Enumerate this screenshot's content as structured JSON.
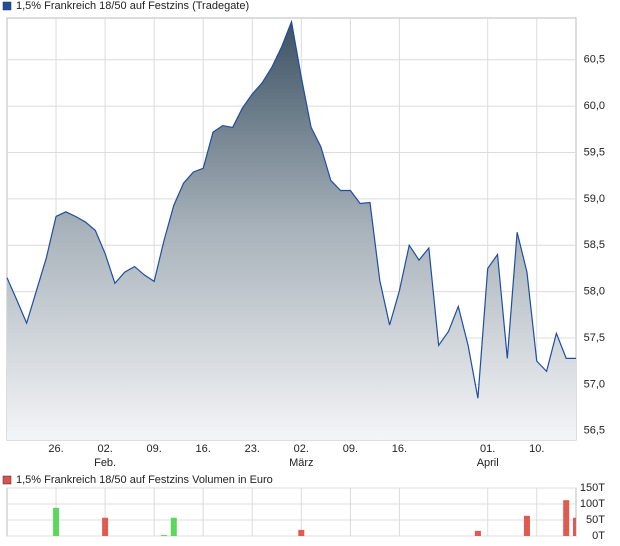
{
  "chart_data": [
    {
      "type": "area",
      "title": "1,5% Frankreich 18/50 auf Festzins (Tradegate)",
      "color": "#1f4ea0",
      "legend_color": "#1f4ea0",
      "x": [
        0,
        1,
        2,
        3,
        4,
        5,
        6,
        7,
        8,
        9,
        10,
        11,
        12,
        13,
        14,
        15,
        16,
        17,
        18,
        19,
        20,
        21,
        22,
        23,
        24,
        25,
        26,
        27,
        28,
        29,
        30,
        31,
        32,
        33,
        34,
        35,
        36,
        37,
        38,
        39,
        40,
        41,
        42,
        43,
        44,
        45,
        46,
        47,
        48,
        49,
        50,
        51,
        52,
        53,
        54,
        55,
        56,
        57,
        58
      ],
      "values": [
        58.15,
        57.91,
        57.66,
        58.01,
        58.36,
        58.81,
        58.86,
        58.81,
        58.75,
        58.66,
        58.41,
        58.09,
        58.21,
        58.27,
        58.18,
        58.11,
        58.55,
        58.93,
        59.17,
        59.29,
        59.33,
        59.72,
        59.79,
        59.77,
        59.98,
        60.13,
        60.25,
        60.42,
        60.64,
        60.91,
        60.31,
        59.77,
        59.56,
        59.2,
        59.09,
        59.09,
        58.95,
        58.96,
        58.12,
        57.64,
        58.01,
        58.5,
        58.34,
        58.47,
        57.42,
        57.57,
        57.84,
        57.42,
        56.85,
        58.25,
        58.4,
        57.28,
        58.64,
        58.21,
        57.25,
        57.14,
        57.55,
        57.28,
        57.28
      ],
      "xlim": [
        0,
        58
      ],
      "xticks": [
        {
          "value": 5,
          "label": "26."
        },
        {
          "value": 10,
          "label": "02."
        },
        {
          "value": 15,
          "label": "09."
        },
        {
          "value": 20,
          "label": "16."
        },
        {
          "value": 25,
          "label": "23."
        },
        {
          "value": 30,
          "label": "02."
        },
        {
          "value": 35,
          "label": "09."
        },
        {
          "value": 40,
          "label": "16."
        },
        {
          "value": 49,
          "label": "01."
        },
        {
          "value": 54,
          "label": "10."
        }
      ],
      "xmonths": [
        {
          "value": 10,
          "label": "Feb."
        },
        {
          "value": 30,
          "label": "März"
        },
        {
          "value": 49,
          "label": "April"
        }
      ],
      "ylim": [
        56.4,
        60.95
      ],
      "yticks": [
        {
          "value": 56.5,
          "label": "56,5"
        },
        {
          "value": 57,
          "label": "57,0"
        },
        {
          "value": 57.5,
          "label": "57,5"
        },
        {
          "value": 58,
          "label": "58,0"
        },
        {
          "value": 58.5,
          "label": "58,5"
        },
        {
          "value": 59,
          "label": "59,0"
        },
        {
          "value": 59.5,
          "label": "59,5"
        },
        {
          "value": 60,
          "label": "60,0"
        },
        {
          "value": 60.5,
          "label": "60,5"
        }
      ],
      "grid": true
    },
    {
      "type": "bar",
      "title": "1,5% Frankreich 18/50 auf Festzins Volumen in Euro",
      "legend_color": "#d9534f",
      "x": [
        5,
        10,
        16,
        17,
        30,
        48,
        53,
        57,
        58
      ],
      "values": [
        88000,
        57000,
        3000,
        57000,
        19000,
        16000,
        63000,
        112000,
        57000
      ],
      "colors": [
        "#5cd65c",
        "#e05a50",
        "#5cd65c",
        "#5cd65c",
        "#e05a50",
        "#e05a50",
        "#e05a50",
        "#e05a50",
        "#e05a50"
      ],
      "xlim": [
        0,
        58
      ],
      "ylim": [
        0,
        150000
      ],
      "yticks": [
        {
          "value": 0,
          "label": "0T"
        },
        {
          "value": 50000,
          "label": "50T"
        },
        {
          "value": 100000,
          "label": "100T"
        },
        {
          "value": 150000,
          "label": "150T"
        }
      ],
      "grid": true
    }
  ]
}
